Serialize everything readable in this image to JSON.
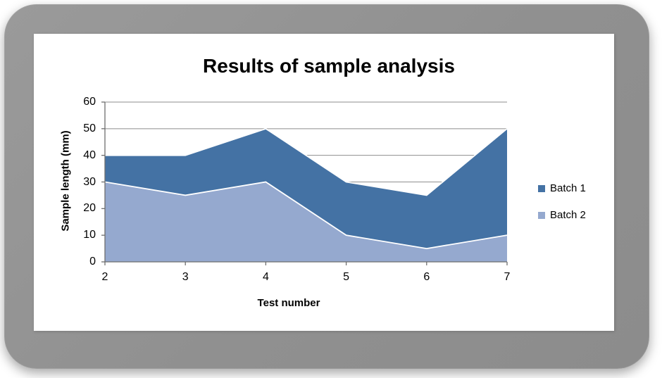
{
  "window": {
    "frame_color": "#919191",
    "card_color": "#FFFFFF"
  },
  "chart_data": {
    "type": "area",
    "title": "Results of sample analysis",
    "xlabel": "Test number",
    "ylabel": "Sample length (mm)",
    "x": [
      2,
      3,
      4,
      5,
      6,
      7
    ],
    "series": [
      {
        "name": "Batch 1",
        "values": [
          40,
          40,
          50,
          30,
          25,
          50
        ],
        "color": "#4472A4"
      },
      {
        "name": "Batch 2",
        "values": [
          30,
          25,
          30,
          10,
          5,
          10
        ],
        "color": "#95A9CF"
      }
    ],
    "series_overlap": "overlapping",
    "ylim": [
      0,
      60
    ],
    "yticks": [
      0,
      10,
      20,
      30,
      40,
      50,
      60
    ],
    "grid": true,
    "gridline_color": "#8E8E8E",
    "axis_color": "#6E6E6E",
    "area_edge_color": "#FFFFFF",
    "text_color": "#000000",
    "legend_position": "right"
  }
}
